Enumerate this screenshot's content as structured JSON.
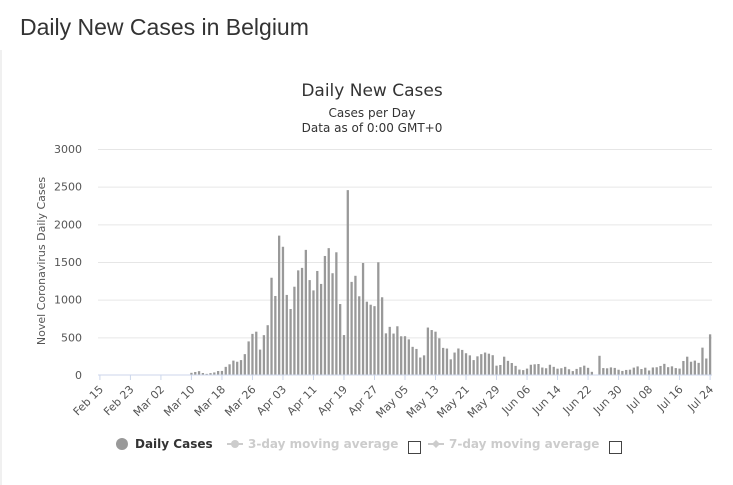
{
  "page": {
    "heading": "Daily New Cases in Belgium"
  },
  "legend": {
    "items": [
      {
        "label": "Daily Cases",
        "active": true
      },
      {
        "label": "3-day moving average",
        "active": false
      },
      {
        "label": "7-day moving average",
        "active": false
      }
    ]
  },
  "colors": {
    "bar": "#999999",
    "legend_inactive": "#cccccc",
    "grid": "#e6e6e6"
  },
  "chart_data": {
    "type": "bar",
    "title": "Daily New Cases",
    "subtitle": "Cases per Day",
    "subtitle2": "Data as of 0:00 GMT+0",
    "ylabel": "Novel Coronavirus Daily Cases",
    "xlabel": "",
    "ylim": [
      0,
      3000
    ],
    "yticks": [
      0,
      500,
      1000,
      1500,
      2000,
      2500,
      3000
    ],
    "xtick_labels": [
      "Feb 15",
      "Feb 23",
      "Mar 02",
      "Mar 10",
      "Mar 18",
      "Mar 26",
      "Apr 03",
      "Apr 11",
      "Apr 19",
      "Apr 27",
      "May 05",
      "May 13",
      "May 21",
      "May 29",
      "Jun 06",
      "Jun 14",
      "Jun 22",
      "Jun 30",
      "Jul 08",
      "Jul 16",
      "Jul 24"
    ],
    "xtick_every": 8,
    "grid": true,
    "legend_position": "bottom",
    "series": [
      {
        "name": "Daily Cases",
        "start_label": "Feb 15",
        "values": [
          0,
          0,
          0,
          0,
          0,
          0,
          0,
          0,
          0,
          0,
          0,
          0,
          0,
          0,
          0,
          1,
          2,
          0,
          0,
          0,
          0,
          0,
          0,
          0,
          29,
          40,
          51,
          26,
          15,
          25,
          34,
          53,
          54,
          108,
          142,
          191,
          176,
          198,
          277,
          446,
          546,
          575,
          337,
          529,
          661,
          1291,
          1049,
          1850,
          1702,
          1063,
          876,
          1172,
          1389,
          1422,
          1661,
          1260,
          1123,
          1381,
          1209,
          1580,
          1684,
          1351,
          1629,
          942,
          530,
          2454,
          1236,
          1317,
          1045,
          1487,
          973,
          933,
          914,
          1496,
          1032,
          553,
          639,
          550,
          647,
          514,
          515,
          473,
          374,
          346,
          232,
          261,
          630,
          597,
          575,
          487,
          360,
          351,
          208,
          298,
          352,
          333,
          289,
          261,
          198,
          248,
          277,
          298,
          283,
          263,
          124,
          133,
          243,
          188,
          159,
          121,
          72,
          65,
          85,
          136,
          142,
          146,
          99,
          90,
          136,
          108,
          84,
          90,
          108,
          76,
          52,
          81,
          104,
          124,
          95,
          42,
          0,
          255,
          92,
          89,
          101,
          94,
          70,
          54,
          67,
          71,
          98,
          114,
          79,
          97,
          60,
          100,
          103,
          120,
          148,
          104,
          115,
          92,
          85,
          186,
          243,
          176,
          191,
          161,
          363,
          219,
          540
        ]
      }
    ]
  }
}
